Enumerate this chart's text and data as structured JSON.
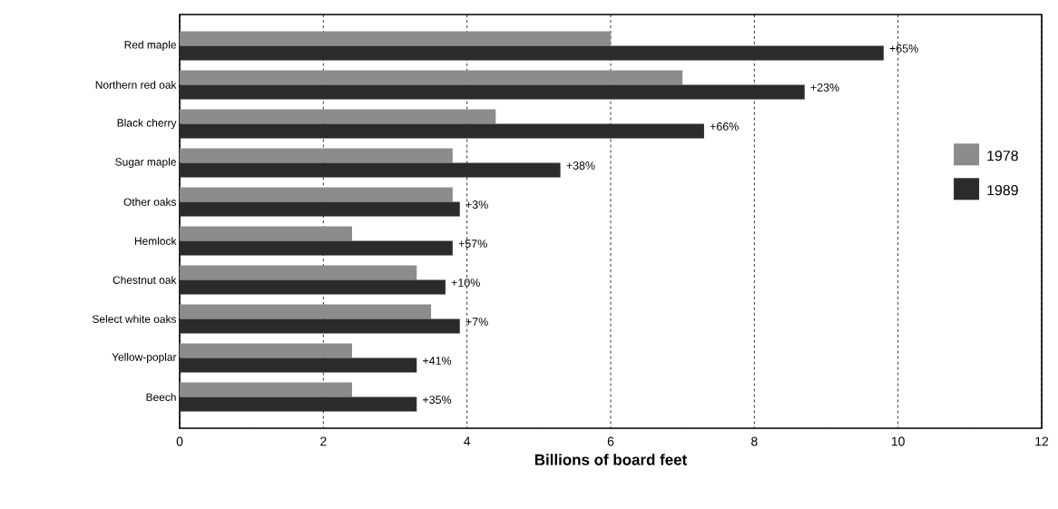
{
  "chart_data": {
    "type": "bar",
    "orientation": "horizontal",
    "xlabel": "Billions of board feet",
    "categories": [
      "Red maple",
      "Northern red oak",
      "Black cherry",
      "Sugar maple",
      "Other oaks",
      "Hemlock",
      "Chestnut oak",
      "Select white oaks",
      "Yellow-poplar",
      "Beech"
    ],
    "series": [
      {
        "name": "1978",
        "color": "#8c8c8c",
        "values": [
          6.0,
          7.0,
          4.4,
          3.8,
          3.8,
          2.4,
          3.3,
          3.5,
          2.4,
          2.4
        ]
      },
      {
        "name": "1989",
        "color": "#2b2b2b",
        "values": [
          9.8,
          8.7,
          7.3,
          5.3,
          3.9,
          3.8,
          3.7,
          3.9,
          3.3,
          3.3
        ]
      }
    ],
    "annotations": [
      {
        "text": "+65%",
        "x": 9.8,
        "y": "Red maple"
      },
      {
        "text": "+23%",
        "x": 8.7,
        "y": "Northern red oak"
      },
      {
        "text": "+66%",
        "x": 7.3,
        "y": "Black cherry"
      },
      {
        "text": "+38%",
        "x": 5.3,
        "y": "Sugar maple"
      },
      {
        "text": "+3%",
        "x": 3.9,
        "y": "Other oaks"
      },
      {
        "text": "+57%",
        "x": 3.8,
        "y": "Hemlock"
      },
      {
        "text": "+10%",
        "x": 3.7,
        "y": "Chestnut oak"
      },
      {
        "text": "+7%",
        "x": 3.9,
        "y": "Select white oaks"
      },
      {
        "text": "+41%",
        "x": 3.3,
        "y": "Yellow-poplar"
      },
      {
        "text": "+35%",
        "x": 3.3,
        "y": "Beech"
      }
    ],
    "xlim": [
      0,
      12
    ],
    "xticks": [
      0,
      2,
      4,
      6,
      8,
      10,
      12
    ],
    "grid": "x",
    "legend": "right"
  }
}
